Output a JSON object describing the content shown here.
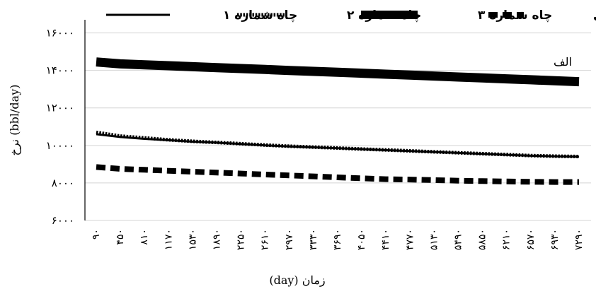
{
  "chart_data": {
    "type": "line",
    "title": "",
    "annotation": "الف",
    "xlabel": "زمان (day)",
    "ylabel": "نرخ (bbl/day)",
    "ylim": [
      6000,
      16000
    ],
    "yticks": [
      6000,
      8000,
      10000,
      12000,
      14000,
      16000
    ],
    "ytick_labels": [
      "۶۰۰۰",
      "۸۰۰۰",
      "۱۰۰۰۰",
      "۱۲۰۰۰",
      "۱۴۰۰۰",
      "۱۶۰۰۰"
    ],
    "x": [
      90,
      450,
      810,
      1170,
      1530,
      1890,
      2250,
      2610,
      2970,
      3330,
      3690,
      4050,
      4410,
      4770,
      5130,
      5490,
      5850,
      6210,
      6570,
      6930,
      7290
    ],
    "xtick_labels": [
      "۹۰",
      "۴۵۰",
      "۸۱۰",
      "۱۱۷۰",
      "۱۵۳۰",
      "۱۸۹۰",
      "۲۲۵۰",
      "۲۶۱۰",
      "۲۹۷۰",
      "۳۳۳۰",
      "۳۶۹۰",
      "۴۰۵۰",
      "۴۴۱۰",
      "۴۷۷۰",
      "۵۱۳۰",
      "۵۴۹۰",
      "۵۸۵۰",
      "۶۲۱۰",
      "۶۵۷۰",
      "۶۹۳۰",
      "۷۲۹۰"
    ],
    "grid": "horizontal",
    "legend_position": "top",
    "series": [
      {
        "name": "چاه شماره ۱",
        "style": "solid",
        "color": "#000000",
        "values": [
          10600,
          10450,
          10350,
          10280,
          10200,
          10150,
          10080,
          10000,
          9950,
          9900,
          9850,
          9800,
          9750,
          9700,
          9650,
          9600,
          9550,
          9500,
          9450,
          9420,
          9400
        ]
      },
      {
        "name": "چاه شماره ۲",
        "style": "dotted",
        "color": "#000000",
        "values": [
          10700,
          10500,
          10400,
          10300,
          10220,
          10160,
          10090,
          10020,
          9960,
          9910,
          9860,
          9810,
          9760,
          9710,
          9660,
          9610,
          9560,
          9510,
          9460,
          9430,
          9410
        ]
      },
      {
        "name": "چاه شماره ۳",
        "style": "thick",
        "color": "#000000",
        "values": [
          14450,
          14350,
          14300,
          14250,
          14200,
          14150,
          14100,
          14050,
          14000,
          13950,
          13900,
          13850,
          13800,
          13750,
          13700,
          13650,
          13600,
          13550,
          13500,
          13450,
          13400
        ]
      },
      {
        "name": "چاه تزریقی",
        "style": "dashed",
        "color": "#000000",
        "values": [
          8850,
          8750,
          8700,
          8650,
          8600,
          8550,
          8500,
          8450,
          8400,
          8350,
          8300,
          8250,
          8200,
          8180,
          8150,
          8120,
          8100,
          8080,
          8060,
          8050,
          8050
        ]
      }
    ]
  }
}
